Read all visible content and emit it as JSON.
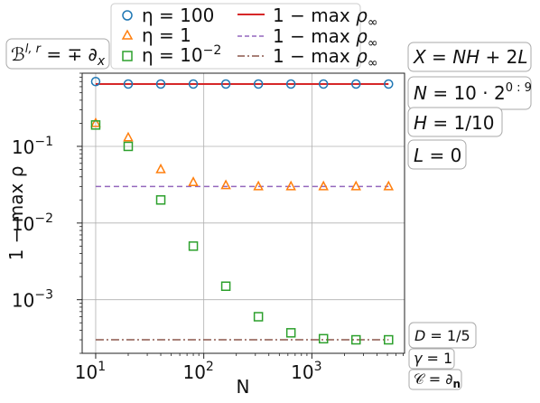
{
  "chart_data": {
    "type": "scatter",
    "x_scale": "log",
    "y_scale": "log",
    "xlabel": "N",
    "ylabel": "1 − max ρ",
    "xlim": [
      7.5,
      7200
    ],
    "ylim": [
      0.0002,
      0.9
    ],
    "x_ticks": [
      {
        "value": 10,
        "label": "10",
        "exp": "1"
      },
      {
        "value": 100,
        "label": "10",
        "exp": "2"
      },
      {
        "value": 1000,
        "label": "10",
        "exp": "3"
      }
    ],
    "y_ticks": [
      {
        "value": 0.1,
        "label": "10",
        "exp": "−1"
      },
      {
        "value": 0.01,
        "label": "10",
        "exp": "−2"
      },
      {
        "value": 0.001,
        "label": "10",
        "exp": "−3"
      }
    ],
    "grid": true,
    "legend_position": "top",
    "series": [
      {
        "name": "η = 100",
        "marker": "circle",
        "color": "#1f77b4",
        "x": [
          10,
          20,
          40,
          80,
          160,
          320,
          640,
          1280,
          2560,
          5120
        ],
        "y": [
          0.7,
          0.65,
          0.65,
          0.65,
          0.65,
          0.65,
          0.65,
          0.65,
          0.65,
          0.65
        ]
      },
      {
        "name": "η = 1",
        "marker": "triangle",
        "color": "#ff7f0e",
        "x": [
          10,
          20,
          40,
          80,
          160,
          320,
          640,
          1280,
          2560,
          5120
        ],
        "y": [
          0.2,
          0.13,
          0.05,
          0.034,
          0.031,
          0.03,
          0.03,
          0.03,
          0.03,
          0.03
        ]
      },
      {
        "name": "η = 10^−2",
        "marker": "square",
        "color": "#2ca02c",
        "x": [
          10,
          20,
          40,
          80,
          160,
          320,
          640,
          1280,
          2560,
          5120
        ],
        "y": [
          0.19,
          0.1,
          0.02,
          0.005,
          0.0015,
          0.0006,
          0.00037,
          0.00031,
          0.0003,
          0.0003
        ]
      }
    ],
    "reference_lines": [
      {
        "name": "1 − max ρ∞",
        "style": "solid",
        "color": "#d62728",
        "value": 0.65,
        "x_range": [
          10,
          5120
        ]
      },
      {
        "name": "1 − max ρ∞",
        "style": "dashed",
        "color": "#9467bd",
        "value": 0.03,
        "x_range": [
          10,
          5120
        ]
      },
      {
        "name": "1 − max ρ∞",
        "style": "dashdot",
        "color": "#8c564b",
        "value": 0.0003,
        "x_range": [
          10,
          5120
        ]
      }
    ],
    "annotations": {
      "bc": "ℬ^{l,r} = ∓ ∂_x",
      "right_top": [
        {
          "text": "X = NH + 2L"
        },
        {
          "text": "N = 10 · 2^{0:9}"
        },
        {
          "text": "H = 1/10"
        },
        {
          "text": "L = 0"
        }
      ],
      "right_bottom": [
        {
          "text": "D = 1/5"
        },
        {
          "text": "γ = 1"
        },
        {
          "text": "𝒞 = ∂_𝐧"
        }
      ]
    }
  }
}
